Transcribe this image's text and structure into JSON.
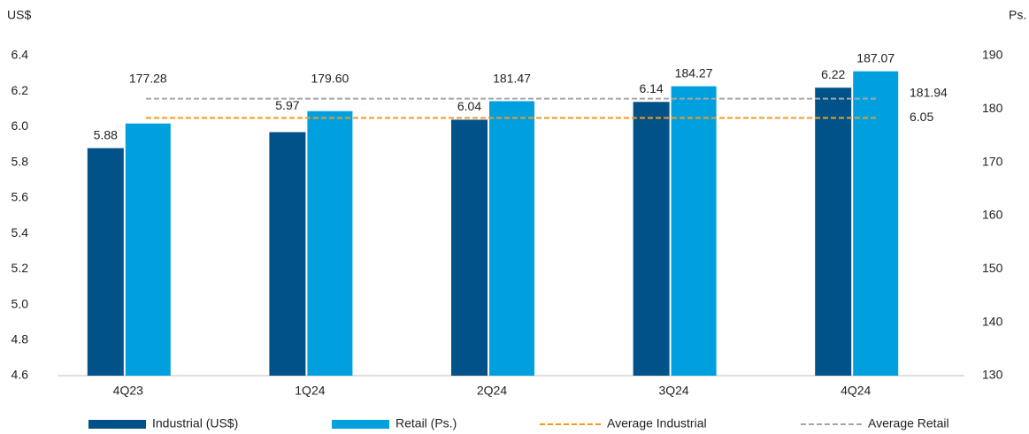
{
  "chart_data": {
    "type": "bar",
    "y_label": "US$",
    "y2_label": "Ps.",
    "categories": [
      "4Q23",
      "1Q24",
      "2Q24",
      "3Q24",
      "4Q24"
    ],
    "series": [
      {
        "name": "Industrial (US$)",
        "color": "#005288",
        "values": [
          5.88,
          5.97,
          6.04,
          6.14,
          6.22
        ]
      },
      {
        "name": "Retail (Ps.)",
        "color": "#00a0df",
        "axis": "y2",
        "values": [
          177.28,
          179.6,
          181.47,
          184.27,
          187.07
        ],
        "value_labels": [
          "177.28",
          "179.60",
          "181.47",
          "184.27",
          "187.07"
        ]
      }
    ],
    "averages": [
      {
        "name": "Average Industrial",
        "color": "#f39a1e",
        "value": 6.05
      },
      {
        "name": "Average Retail",
        "color": "#a6a6a6",
        "axis": "y2",
        "value": 181.94
      }
    ],
    "ylim": [
      4.6,
      6.4
    ],
    "yticks": [
      4.6,
      4.8,
      {
        "value": 5,
        "label": "5.0"
      },
      5.2,
      5.4,
      5.6,
      5.8,
      {
        "value": 6,
        "label": "6.0"
      },
      6.2,
      6.4
    ],
    "y2lim": [
      130,
      190
    ],
    "y2ticks": [
      130,
      140,
      150,
      160,
      170,
      180,
      190
    ],
    "grid": false,
    "legend": "bottom"
  }
}
